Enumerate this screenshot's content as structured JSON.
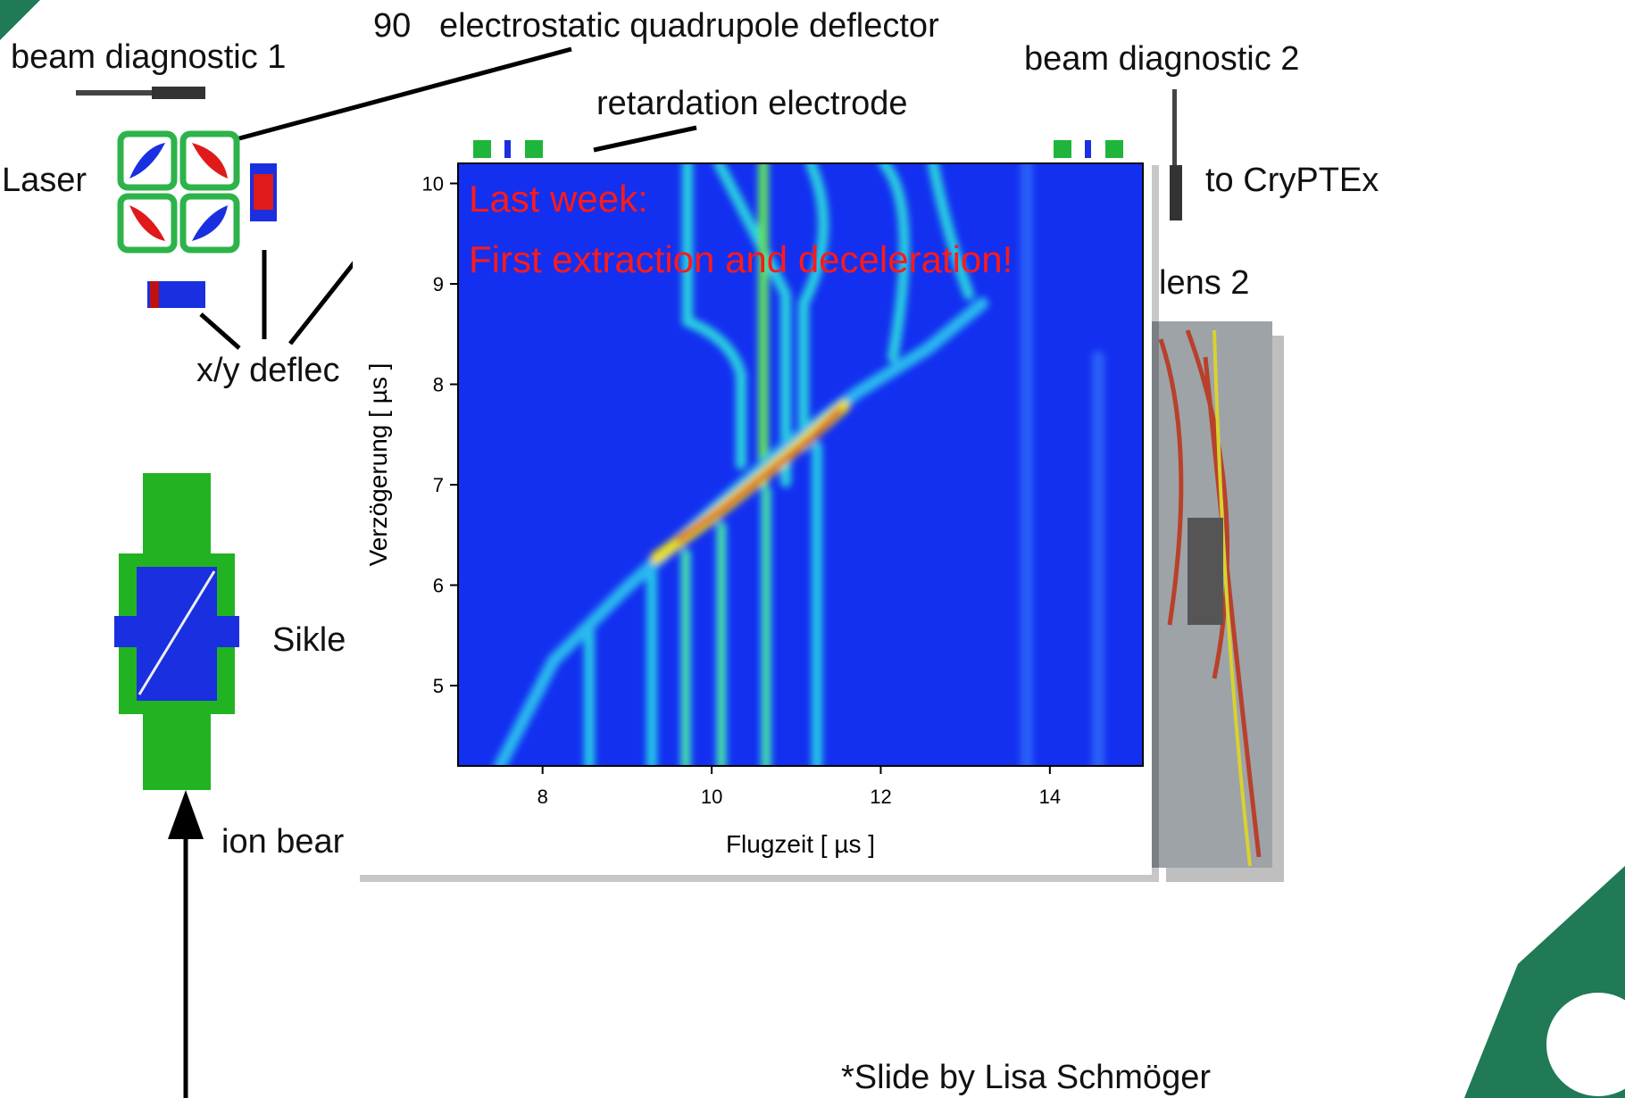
{
  "slide": {
    "quadrupole": "90   electrostatic quadrupole deflector",
    "diag1": "beam diagnostic 1",
    "diag2": "beam diagnostic 2",
    "retardation": "retardation electrode",
    "laser": "Laser",
    "cryptex": "to CryPTEx",
    "lens": "lens 2",
    "xy": "x/y deflec",
    "sikle": "Sikle",
    "ion": "ion bear",
    "credit": "*Slide by Lisa Schmöger"
  },
  "chart_data": {
    "type": "heatmap",
    "xlabel": "Flugzeit [ µs ]",
    "ylabel": "Verzögerung [ µs ]",
    "xlim": [
      7,
      15.1
    ],
    "ylim": [
      4.2,
      10.2
    ],
    "xticks": [
      8,
      10,
      12,
      14
    ],
    "yticks": [
      5,
      6,
      7,
      8,
      9,
      10
    ],
    "annotations": [
      "Last week:",
      "First extraction and deceleration!"
    ]
  }
}
